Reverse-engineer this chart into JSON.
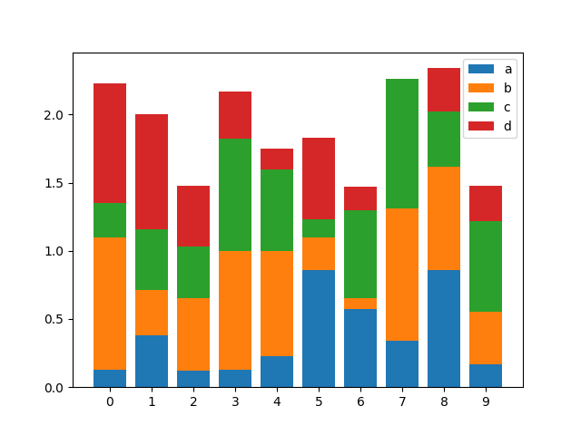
{
  "categories": [
    0,
    1,
    2,
    3,
    4,
    5,
    6,
    7,
    8,
    9
  ],
  "a": [
    0.13,
    0.38,
    0.12,
    0.13,
    0.23,
    0.86,
    0.57,
    0.34,
    0.86,
    0.17
  ],
  "b": [
    0.97,
    0.33,
    0.53,
    0.87,
    0.77,
    0.24,
    0.08,
    0.97,
    0.76,
    0.38
  ],
  "c": [
    0.25,
    0.45,
    0.38,
    0.82,
    0.6,
    0.13,
    0.65,
    0.95,
    0.4,
    0.67
  ],
  "d": [
    0.88,
    0.84,
    0.45,
    0.35,
    0.15,
    0.6,
    0.17,
    0.0,
    0.32,
    0.26
  ],
  "colors": [
    "#1f77b4",
    "#ff7f0e",
    "#2ca02c",
    "#d62728"
  ],
  "labels": [
    "a",
    "b",
    "c",
    "d"
  ],
  "figsize": [
    6.4,
    4.8
  ],
  "dpi": 100
}
